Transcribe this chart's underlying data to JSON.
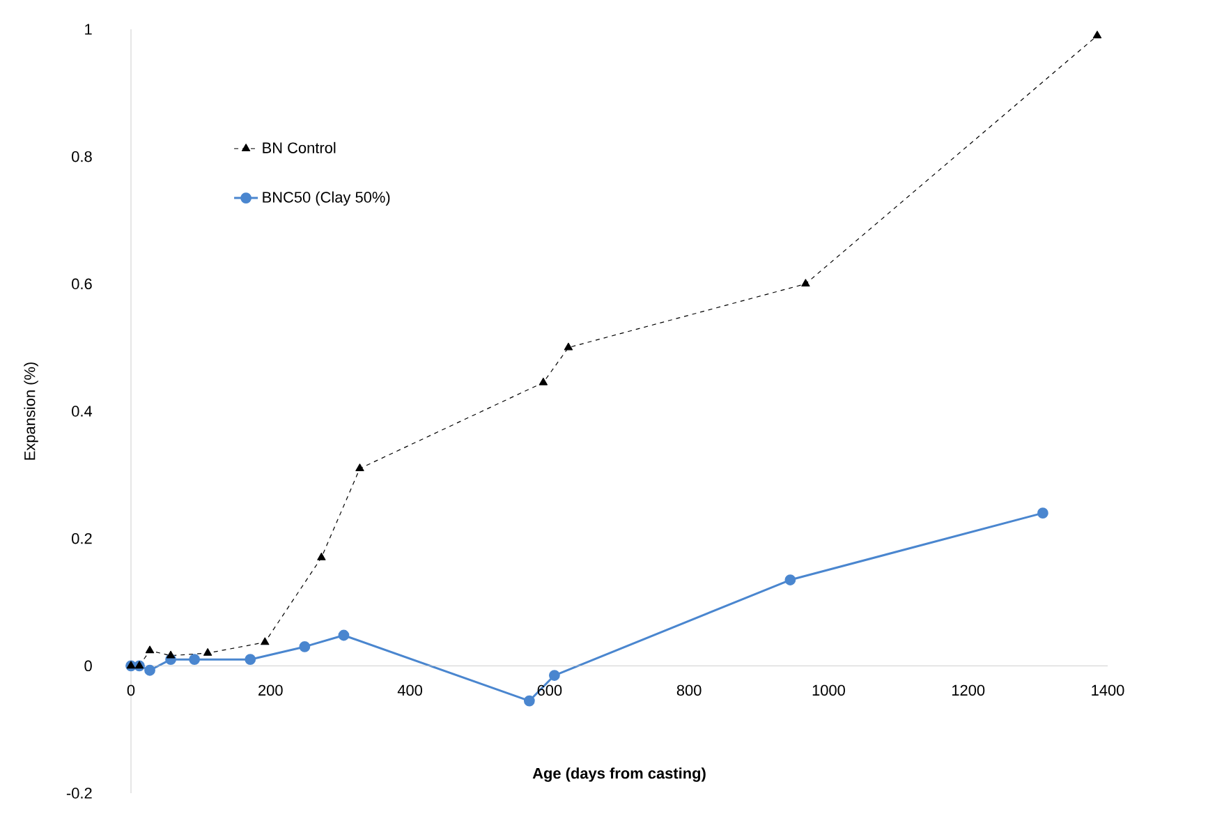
{
  "chart_data": {
    "type": "line",
    "xlabel": "Age (days from casting)",
    "ylabel": "Expansion (%)",
    "xlim": [
      0,
      1400
    ],
    "ylim": [
      -0.2,
      1
    ],
    "xticks": [
      0,
      200,
      400,
      600,
      800,
      1000,
      1200,
      1400
    ],
    "yticks": [
      -0.2,
      0,
      0.2,
      0.4,
      0.6,
      0.8,
      1
    ],
    "grid": false,
    "legend": "top left",
    "series": [
      {
        "name": "BN Control",
        "color": "#000000",
        "marker": "triangle",
        "line_style": "dashed",
        "x": [
          0,
          12,
          27,
          57,
          110,
          192,
          273,
          328,
          591,
          627,
          967,
          1385
        ],
        "values": [
          0,
          0,
          0.024,
          0.016,
          0.02,
          0.037,
          0.17,
          0.31,
          0.445,
          0.5,
          0.6,
          0.99
        ]
      },
      {
        "name": "BNC50 (Clay 50%)",
        "color": "#4a86cf",
        "marker": "circle",
        "line_style": "solid",
        "x": [
          0,
          12,
          27,
          57,
          91,
          171,
          249,
          305,
          571,
          607,
          945,
          1307
        ],
        "values": [
          0,
          0,
          -0.007,
          0.01,
          0.01,
          0.01,
          0.03,
          0.048,
          -0.055,
          -0.015,
          0.135,
          0.24
        ]
      }
    ]
  }
}
